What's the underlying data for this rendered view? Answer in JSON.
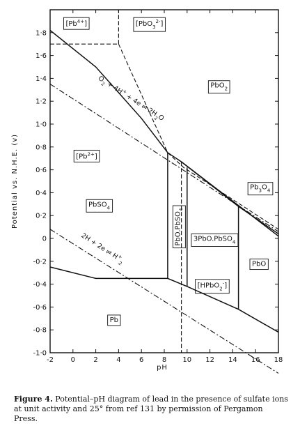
{
  "chart_data": {
    "type": "line",
    "title": "",
    "xlabel": "pH",
    "ylabel": "Potential vs. N.H.E. (v)",
    "xlim": [
      -2,
      18
    ],
    "ylim": [
      -1.0,
      2.0
    ],
    "x_ticks": [
      -2,
      0,
      2,
      4,
      6,
      8,
      10,
      12,
      14,
      16,
      18
    ],
    "y_ticks": [
      1.8,
      1.6,
      1.4,
      1.2,
      1.0,
      0.8,
      0.6,
      0.4,
      0.2,
      0,
      -0.2,
      -0.4,
      -0.6,
      -0.8,
      -1.0
    ],
    "x_tick_labels": [
      "-2",
      "0",
      "2",
      "4",
      "6",
      "8",
      "10",
      "12",
      "14",
      "16",
      "18"
    ],
    "y_tick_labels": [
      "1·8",
      "1·6",
      "1·4",
      "1·2",
      "1·0",
      "0·8",
      "0·6",
      "0·4",
      "0·2",
      "0",
      "-0·2",
      "-0·4",
      "-0·6",
      "-0·8",
      "-1·0"
    ],
    "boundaries": [
      {
        "style": "solid",
        "points": [
          [
            -2,
            1.82
          ],
          [
            2,
            1.5
          ],
          [
            6,
            1.05
          ],
          [
            8.3,
            0.75
          ],
          [
            9.5,
            0.67
          ],
          [
            14.5,
            0.28
          ],
          [
            18,
            0.04
          ]
        ]
      },
      {
        "style": "solid",
        "points": [
          [
            9.5,
            0.67
          ],
          [
            18,
            0.02
          ]
        ]
      },
      {
        "style": "solid",
        "points": [
          [
            -2,
            -0.25
          ],
          [
            2,
            -0.35
          ],
          [
            8.3,
            -0.35
          ],
          [
            10,
            -0.42
          ],
          [
            14.5,
            -0.62
          ],
          [
            18,
            -0.82
          ]
        ]
      },
      {
        "style": "solid",
        "points": [
          [
            8.3,
            0.75
          ],
          [
            8.3,
            -0.35
          ]
        ]
      },
      {
        "style": "solid",
        "points": [
          [
            10,
            0.62
          ],
          [
            10,
            -0.42
          ]
        ]
      },
      {
        "style": "solid",
        "points": [
          [
            14.5,
            0.28
          ],
          [
            14.5,
            -0.62
          ]
        ]
      },
      {
        "style": "dashed",
        "points": [
          [
            -2,
            1.7
          ],
          [
            4,
            1.7
          ]
        ]
      },
      {
        "style": "dashed",
        "points": [
          [
            4,
            1.7
          ],
          [
            4,
            2.0
          ]
        ]
      },
      {
        "style": "dashed",
        "points": [
          [
            4,
            1.7
          ],
          [
            8.3,
            0.75
          ],
          [
            9.7,
            0.62
          ],
          [
            18,
            0.08
          ]
        ]
      },
      {
        "style": "dashed",
        "points": [
          [
            9.5,
            0.67
          ],
          [
            9.5,
            -1.0
          ]
        ]
      },
      {
        "style": "dashdot",
        "points": [
          [
            -2,
            1.35
          ],
          [
            18,
            0.06
          ]
        ]
      },
      {
        "style": "dashdot",
        "points": [
          [
            -2,
            0.08
          ],
          [
            18,
            -1.18
          ]
        ]
      }
    ],
    "regions": [
      {
        "label": "[Pb",
        "sup": "4+",
        "after": "]",
        "x": 0.3,
        "y": 1.88
      },
      {
        "label": "[PbO",
        "sub": "3",
        "sup": "2-",
        "after": "]",
        "x": 6.7,
        "y": 1.88
      },
      {
        "label": "PbO",
        "sub": "2",
        "after": "",
        "x": 12.8,
        "y": 1.34
      },
      {
        "label": "[Pb",
        "sup": "2+",
        "after": "]",
        "x": 1.2,
        "y": 0.72
      },
      {
        "label": "PbSO",
        "sub": "4",
        "after": "",
        "x": 2.3,
        "y": 0.3
      },
      {
        "label": "Pb",
        "sub": "3",
        "after": "O",
        "sub2": "4",
        "x": 16.4,
        "y": 0.45
      },
      {
        "label": "3PbO.PbSO",
        "sub": "4",
        "after": "",
        "x": 12.4,
        "y": 0.0
      },
      {
        "label": "PbO",
        "sub": "",
        "after": "",
        "x": 16.3,
        "y": -0.22
      },
      {
        "label": "[HPbO",
        "sub": "2",
        "sup": "-",
        "after": "]",
        "x": 12.2,
        "y": -0.41
      },
      {
        "label": "Pb",
        "sub": "",
        "after": "",
        "x": 3.6,
        "y": -0.71
      }
    ],
    "vertical_region": {
      "label": "PbO.PbSO",
      "sub": "4",
      "x": 9.15,
      "y": 0.1
    },
    "line_labels": [
      {
        "text": "O",
        "sub": "2",
        "rest": " + 4H",
        "sup": "+",
        "rest2": " + 4e ⇌ 2H",
        "sub2": "2",
        "rest3": "O",
        "x": 5.0,
        "y": 1.21
      },
      {
        "text": "2H",
        "sup": "+",
        "rest": " + 2e ⇌ H",
        "sub": "2",
        "x": 2.5,
        "y": -0.1
      }
    ]
  },
  "caption": {
    "label": "Figure 4.",
    "text": " Potential–pH diagram of lead in the presence of sulfate ions at unit activity and 25° from ref 131 by permission of Pergamon Press."
  }
}
